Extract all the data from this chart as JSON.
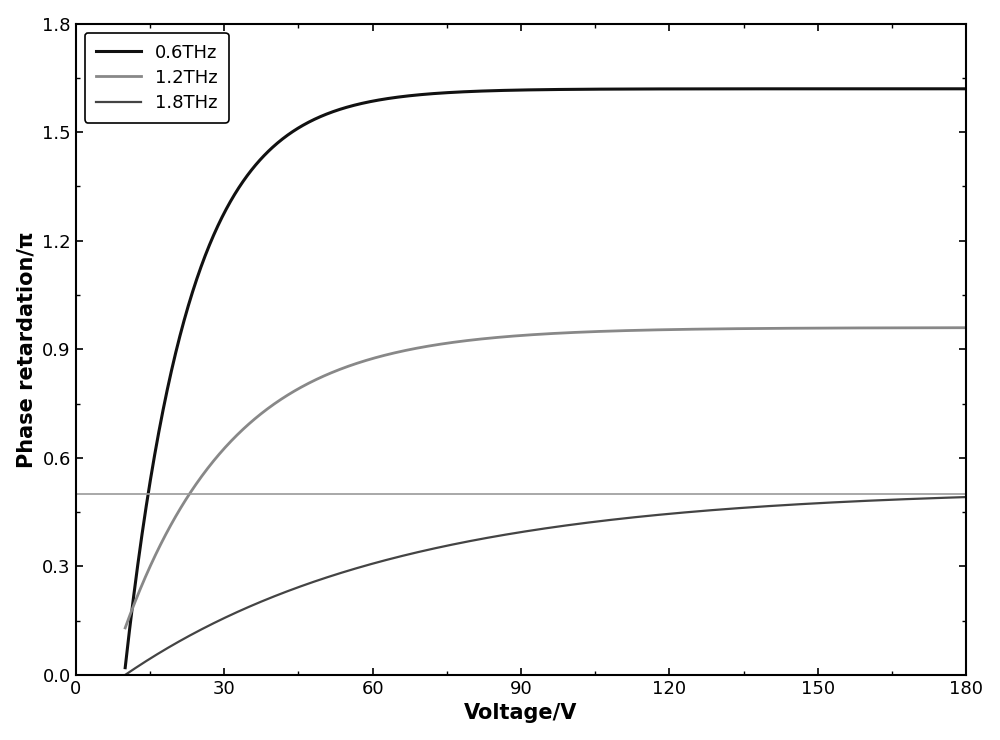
{
  "title": "",
  "xlabel": "Voltage/V",
  "ylabel": "Phase retardation/π",
  "xlim": [
    0,
    180
  ],
  "ylim": [
    0,
    1.8
  ],
  "xticks": [
    0,
    30,
    60,
    90,
    120,
    150,
    180
  ],
  "yticks": [
    0.0,
    0.3,
    0.6,
    0.9,
    1.2,
    1.5,
    1.8
  ],
  "lines": [
    {
      "label": "0.6THz",
      "color": "#111111",
      "linewidth": 2.2,
      "x_start": 10,
      "saturation": 1.62,
      "knee": 13,
      "y0": 0.02
    },
    {
      "label": "1.2THz",
      "color": "#888888",
      "linewidth": 2.0,
      "x_start": 10,
      "saturation": 0.96,
      "knee": 22,
      "y0": 0.13
    },
    {
      "label": "1.8THz",
      "color": "#444444",
      "linewidth": 1.6,
      "x_start": 10,
      "saturation": 0.515,
      "knee": 55,
      "y0": 0.0
    }
  ],
  "hline_y": 0.5,
  "hline_color": "#999999",
  "hline_linewidth": 1.2,
  "background_color": "#ffffff",
  "tick_fontsize": 13,
  "label_fontsize": 15,
  "legend_fontsize": 13
}
